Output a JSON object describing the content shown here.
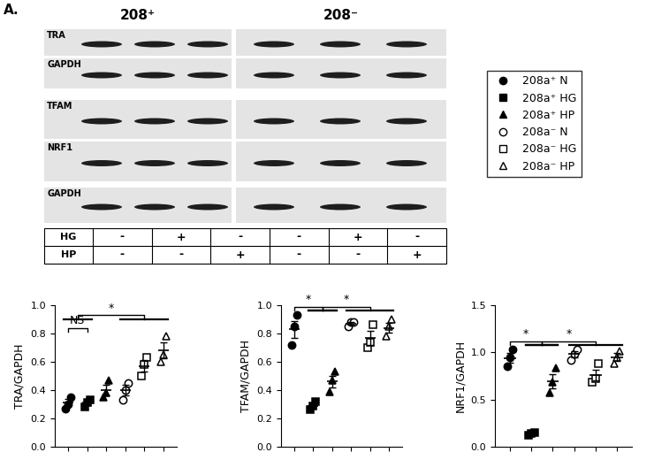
{
  "panel_label": "A.",
  "blot": {
    "groups": [
      "208⁺",
      "208⁻"
    ],
    "rows": [
      "TRA",
      "GAPDH",
      "TFAM",
      "NRF1",
      "GAPDH"
    ],
    "conditions": [
      {
        "label": "HG",
        "values": [
          "-",
          "+",
          "-",
          "-",
          "+",
          "-"
        ]
      },
      {
        "label": "HP",
        "values": [
          "-",
          "-",
          "+",
          "-",
          "-",
          "+"
        ]
      }
    ]
  },
  "chart_data": [
    {
      "type": "dot_plot",
      "ylabel": "TRA/GAPDH",
      "ylim": [
        0,
        1.0
      ],
      "yticks": [
        {
          "value": 0,
          "label": "0.0"
        },
        {
          "value": 0.2,
          "label": "0.2"
        },
        {
          "value": 0.4,
          "label": "0.4"
        },
        {
          "value": 0.6,
          "label": "0.6"
        },
        {
          "value": 0.8,
          "label": "0.8"
        },
        {
          "value": 1.0,
          "label": "1.0"
        }
      ],
      "tick_labels": "y",
      "groups": [
        {
          "name": "208a⁺ N",
          "marker": "circle",
          "color": "#000000",
          "points": [
            0.27,
            0.3,
            0.35
          ],
          "mean": 0.31,
          "error": 0.025
        },
        {
          "name": "208a⁺ HG",
          "marker": "square",
          "color": "#000000",
          "points": [
            0.28,
            0.31,
            0.33
          ],
          "mean": 0.31,
          "error": 0.015
        },
        {
          "name": "208a⁺ HP",
          "marker": "triangle",
          "color": "#000000",
          "points": [
            0.35,
            0.38,
            0.47
          ],
          "mean": 0.4,
          "error": 0.035
        },
        {
          "name": "208a⁻ N",
          "marker": "open_circle",
          "color": "#000000",
          "points": [
            0.33,
            0.4,
            0.45
          ],
          "mean": 0.4,
          "error": 0.035
        },
        {
          "name": "208a⁻ HG",
          "marker": "open_square",
          "color": "#000000",
          "points": [
            0.5,
            0.58,
            0.63
          ],
          "mean": 0.57,
          "error": 0.04
        },
        {
          "name": "208a⁻ HP",
          "marker": "open_triangle",
          "color": "#000000",
          "points": [
            0.6,
            0.65,
            0.78
          ],
          "mean": 0.68,
          "error": 0.055
        }
      ],
      "brackets": [
        {
          "text": "NS",
          "groups": [
            [
              0
            ],
            [
              1
            ]
          ]
        },
        {
          "text": "*",
          "groups": [
            [
              0,
              1
            ],
            [
              3,
              4,
              5
            ]
          ]
        }
      ]
    },
    {
      "type": "dot_plot",
      "ylabel": "TFAM/GAPDH",
      "ylim": [
        0,
        1.0
      ],
      "yticks": [
        {
          "value": 0,
          "label": "0.0"
        },
        {
          "value": 0.2,
          "label": "0.2"
        },
        {
          "value": 0.4,
          "label": "0.4"
        },
        {
          "value": 0.6,
          "label": "0.6"
        },
        {
          "value": 0.8,
          "label": "0.8"
        },
        {
          "value": 1.0,
          "label": "1.0"
        }
      ],
      "tick_labels": "y",
      "groups": [
        {
          "name": "208a⁺ N",
          "marker": "circle",
          "color": "#000000",
          "points": [
            0.72,
            0.85,
            0.93
          ],
          "mean": 0.83,
          "error": 0.06
        },
        {
          "name": "208a⁺ HG",
          "marker": "square",
          "color": "#000000",
          "points": [
            0.26,
            0.29,
            0.32
          ],
          "mean": 0.29,
          "error": 0.017
        },
        {
          "name": "208a⁺ HP",
          "marker": "triangle",
          "color": "#000000",
          "points": [
            0.39,
            0.47,
            0.53
          ],
          "mean": 0.46,
          "error": 0.04
        },
        {
          "name": "208a⁻ N",
          "marker": "open_circle",
          "color": "#000000",
          "points": [
            0.85,
            0.88,
            0.88
          ],
          "mean": 0.87,
          "error": 0.01
        },
        {
          "name": "208a⁻ HG",
          "marker": "open_square",
          "color": "#000000",
          "points": [
            0.7,
            0.74,
            0.86
          ],
          "mean": 0.77,
          "error": 0.05
        },
        {
          "name": "208a⁻ HP",
          "marker": "open_triangle",
          "color": "#000000",
          "points": [
            0.78,
            0.85,
            0.9
          ],
          "mean": 0.84,
          "error": 0.035
        }
      ],
      "brackets": [
        {
          "text": "*",
          "groups": [
            [
              0
            ],
            [
              1,
              2
            ]
          ]
        },
        {
          "text": "*",
          "groups": [
            [
              1,
              2
            ],
            [
              3,
              4,
              5
            ]
          ]
        }
      ]
    },
    {
      "type": "dot_plot",
      "ylabel": "NRF1/GAPDH",
      "ylim": [
        0,
        1.5
      ],
      "yticks": [
        {
          "value": 0,
          "label": "0.0"
        },
        {
          "value": 0.5,
          "label": "0.5"
        },
        {
          "value": 1.0,
          "label": "1.0"
        },
        {
          "value": 1.5,
          "label": "1.5"
        }
      ],
      "tick_labels": "y",
      "groups": [
        {
          "name": "208a⁺ N",
          "marker": "circle",
          "color": "#000000",
          "points": [
            0.85,
            0.95,
            1.03
          ],
          "mean": 0.94,
          "error": 0.05
        },
        {
          "name": "208a⁺ HG",
          "marker": "square",
          "color": "#000000",
          "points": [
            0.12,
            0.14,
            0.15
          ],
          "mean": 0.14,
          "error": 0.01
        },
        {
          "name": "208a⁺ HP",
          "marker": "triangle",
          "color": "#000000",
          "points": [
            0.57,
            0.68,
            0.83
          ],
          "mean": 0.69,
          "error": 0.075
        },
        {
          "name": "208a⁻ N",
          "marker": "open_circle",
          "color": "#000000",
          "points": [
            0.92,
            0.98,
            1.03
          ],
          "mean": 0.98,
          "error": 0.03
        },
        {
          "name": "208a⁻ HG",
          "marker": "open_square",
          "color": "#000000",
          "points": [
            0.68,
            0.72,
            0.88
          ],
          "mean": 0.76,
          "error": 0.06
        },
        {
          "name": "208a⁻ HP",
          "marker": "open_triangle",
          "color": "#000000",
          "points": [
            0.88,
            0.95,
            1.01
          ],
          "mean": 0.95,
          "error": 0.04
        }
      ],
      "brackets": [
        {
          "text": "*",
          "groups": [
            [
              0
            ],
            [
              1,
              2
            ]
          ]
        },
        {
          "text": "*",
          "groups": [
            [
              1,
              2
            ],
            [
              3,
              4,
              5
            ]
          ]
        }
      ]
    }
  ]
}
